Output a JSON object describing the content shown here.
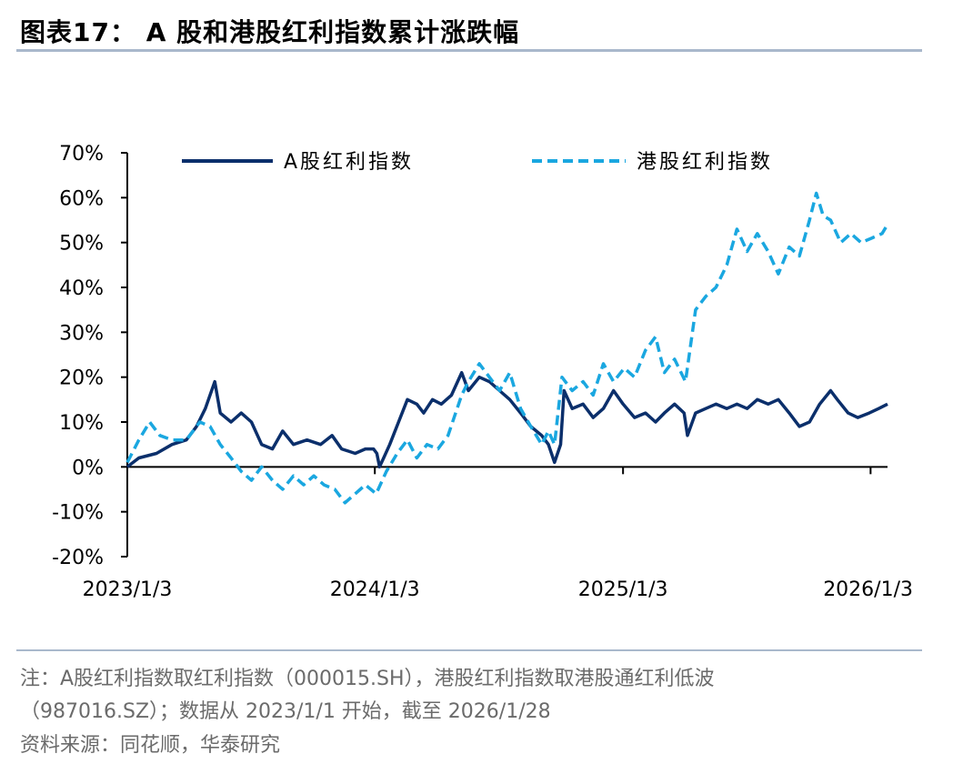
{
  "page": {
    "title": "图表17：  A 股和港股红利指数累计涨跌幅",
    "note_line1": "注：A股红利指数取红利指数（000015.SH），港股红利指数取港股通红利低波",
    "note_line2": "（987016.SZ）；数据从 2023/1/1 开始，截至 2026/1/28",
    "source": "资料来源：同花顺，华泰研究"
  },
  "colors": {
    "a_share": "#0b2f6b",
    "hk": "#1aa7e0",
    "rule": "#a9b8cc"
  },
  "chart_data": {
    "type": "line",
    "title": "",
    "xlabel": "",
    "ylabel": "",
    "y_unit": "%",
    "ylim": [
      -20,
      70
    ],
    "yticks": [
      -20,
      -10,
      0,
      10,
      20,
      30,
      40,
      50,
      60,
      70
    ],
    "ytick_labels": [
      "-20%",
      "-10%",
      "0%",
      "10%",
      "20%",
      "30%",
      "40%",
      "50%",
      "60%",
      "70%"
    ],
    "xlim": [
      "2023-01-03",
      "2026-01-28"
    ],
    "xticks": [
      "2023-01-03",
      "2024-01-03",
      "2025-01-03",
      "2026-01-03"
    ],
    "xtick_labels": [
      "2023/1/3",
      "2024/1/3",
      "2025/1/3",
      "2026/1/3"
    ],
    "grid": false,
    "legend": "top",
    "series": [
      {
        "name": "A股红利指数",
        "style": "solid",
        "points": [
          [
            "2023-01-03",
            0
          ],
          [
            "2023-01-20",
            2
          ],
          [
            "2023-02-15",
            3
          ],
          [
            "2023-03-10",
            5
          ],
          [
            "2023-03-31",
            6
          ],
          [
            "2023-04-15",
            9
          ],
          [
            "2023-04-28",
            13
          ],
          [
            "2023-05-12",
            19
          ],
          [
            "2023-05-20",
            12
          ],
          [
            "2023-06-05",
            10
          ],
          [
            "2023-06-20",
            12
          ],
          [
            "2023-07-05",
            10
          ],
          [
            "2023-07-20",
            5
          ],
          [
            "2023-08-05",
            4
          ],
          [
            "2023-08-20",
            8
          ],
          [
            "2023-09-05",
            5
          ],
          [
            "2023-09-25",
            6
          ],
          [
            "2023-10-15",
            5
          ],
          [
            "2023-11-01",
            7
          ],
          [
            "2023-11-15",
            4
          ],
          [
            "2023-12-05",
            3
          ],
          [
            "2023-12-20",
            4
          ],
          [
            "2024-01-01",
            4
          ],
          [
            "2024-01-06",
            3
          ],
          [
            "2024-01-10",
            0
          ],
          [
            "2024-01-16",
            2
          ],
          [
            "2024-01-25",
            5
          ],
          [
            "2024-02-07",
            10
          ],
          [
            "2024-02-20",
            15
          ],
          [
            "2024-03-05",
            14
          ],
          [
            "2024-03-15",
            12
          ],
          [
            "2024-03-28",
            15
          ],
          [
            "2024-04-10",
            14
          ],
          [
            "2024-04-25",
            16
          ],
          [
            "2024-05-10",
            21
          ],
          [
            "2024-05-20",
            17
          ],
          [
            "2024-06-05",
            20
          ],
          [
            "2024-06-20",
            19
          ],
          [
            "2024-07-05",
            17
          ],
          [
            "2024-07-20",
            15
          ],
          [
            "2024-08-05",
            12
          ],
          [
            "2024-08-20",
            9
          ],
          [
            "2024-09-05",
            7
          ],
          [
            "2024-09-15",
            5
          ],
          [
            "2024-09-24",
            1
          ],
          [
            "2024-10-03",
            5
          ],
          [
            "2024-10-08",
            17
          ],
          [
            "2024-10-20",
            13
          ],
          [
            "2024-11-05",
            14
          ],
          [
            "2024-11-20",
            11
          ],
          [
            "2024-12-05",
            13
          ],
          [
            "2024-12-20",
            17
          ],
          [
            "2025-01-03",
            14
          ],
          [
            "2025-01-20",
            11
          ],
          [
            "2025-02-05",
            12
          ],
          [
            "2025-02-20",
            10
          ],
          [
            "2025-03-05",
            12
          ],
          [
            "2025-03-20",
            14
          ],
          [
            "2025-04-03",
            12
          ],
          [
            "2025-04-08",
            7
          ],
          [
            "2025-04-20",
            12
          ],
          [
            "2025-05-05",
            13
          ],
          [
            "2025-05-20",
            14
          ],
          [
            "2025-06-05",
            13
          ],
          [
            "2025-06-20",
            14
          ],
          [
            "2025-07-05",
            13
          ],
          [
            "2025-07-20",
            15
          ],
          [
            "2025-08-05",
            14
          ],
          [
            "2025-08-20",
            15
          ],
          [
            "2025-09-05",
            12
          ],
          [
            "2025-09-20",
            9
          ],
          [
            "2025-10-05",
            10
          ],
          [
            "2025-10-20",
            14
          ],
          [
            "2025-11-05",
            17
          ],
          [
            "2025-11-15",
            15
          ],
          [
            "2025-12-01",
            12
          ],
          [
            "2025-12-15",
            11
          ],
          [
            "2026-01-01",
            12
          ],
          [
            "2026-01-15",
            13
          ],
          [
            "2026-01-28",
            14
          ]
        ]
      },
      {
        "name": "港股红利指数",
        "style": "dashed",
        "points": [
          [
            "2023-01-03",
            1
          ],
          [
            "2023-01-20",
            6
          ],
          [
            "2023-02-05",
            10
          ],
          [
            "2023-02-20",
            7
          ],
          [
            "2023-03-10",
            6
          ],
          [
            "2023-03-31",
            6
          ],
          [
            "2023-04-20",
            10
          ],
          [
            "2023-05-05",
            9
          ],
          [
            "2023-05-20",
            5
          ],
          [
            "2023-06-05",
            2
          ],
          [
            "2023-06-20",
            -1
          ],
          [
            "2023-07-05",
            -3
          ],
          [
            "2023-07-20",
            0
          ],
          [
            "2023-08-05",
            -3
          ],
          [
            "2023-08-20",
            -5
          ],
          [
            "2023-09-05",
            -2
          ],
          [
            "2023-09-20",
            -4
          ],
          [
            "2023-10-05",
            -2
          ],
          [
            "2023-10-20",
            -4
          ],
          [
            "2023-11-05",
            -5
          ],
          [
            "2023-11-20",
            -8
          ],
          [
            "2023-12-05",
            -6
          ],
          [
            "2023-12-20",
            -4
          ],
          [
            "2024-01-05",
            -6
          ],
          [
            "2024-01-20",
            -1
          ],
          [
            "2024-02-05",
            3
          ],
          [
            "2024-02-20",
            6
          ],
          [
            "2024-03-05",
            2
          ],
          [
            "2024-03-20",
            5
          ],
          [
            "2024-04-05",
            4
          ],
          [
            "2024-04-20",
            7
          ],
          [
            "2024-05-10",
            16
          ],
          [
            "2024-05-20",
            19
          ],
          [
            "2024-06-05",
            23
          ],
          [
            "2024-06-20",
            20
          ],
          [
            "2024-07-05",
            17
          ],
          [
            "2024-07-20",
            21
          ],
          [
            "2024-08-05",
            13
          ],
          [
            "2024-08-20",
            9
          ],
          [
            "2024-09-05",
            5
          ],
          [
            "2024-09-15",
            8
          ],
          [
            "2024-09-24",
            5
          ],
          [
            "2024-10-05",
            20
          ],
          [
            "2024-10-20",
            17
          ],
          [
            "2024-11-05",
            19
          ],
          [
            "2024-11-20",
            16
          ],
          [
            "2024-12-05",
            23
          ],
          [
            "2024-12-20",
            19
          ],
          [
            "2025-01-05",
            22
          ],
          [
            "2025-01-20",
            20
          ],
          [
            "2025-02-05",
            26
          ],
          [
            "2025-02-20",
            29
          ],
          [
            "2025-03-05",
            21
          ],
          [
            "2025-03-20",
            24
          ],
          [
            "2025-04-05",
            19
          ],
          [
            "2025-04-20",
            35
          ],
          [
            "2025-05-05",
            38
          ],
          [
            "2025-05-20",
            40
          ],
          [
            "2025-06-05",
            45
          ],
          [
            "2025-06-20",
            53
          ],
          [
            "2025-07-05",
            48
          ],
          [
            "2025-07-20",
            52
          ],
          [
            "2025-08-05",
            48
          ],
          [
            "2025-08-20",
            43
          ],
          [
            "2025-09-05",
            49
          ],
          [
            "2025-09-20",
            47
          ],
          [
            "2025-10-05",
            55
          ],
          [
            "2025-10-15",
            61
          ],
          [
            "2025-10-25",
            56
          ],
          [
            "2025-11-05",
            55
          ],
          [
            "2025-11-20",
            50
          ],
          [
            "2025-12-05",
            52
          ],
          [
            "2025-12-20",
            50
          ],
          [
            "2026-01-05",
            51
          ],
          [
            "2026-01-20",
            52
          ],
          [
            "2026-01-28",
            54
          ]
        ]
      }
    ]
  }
}
